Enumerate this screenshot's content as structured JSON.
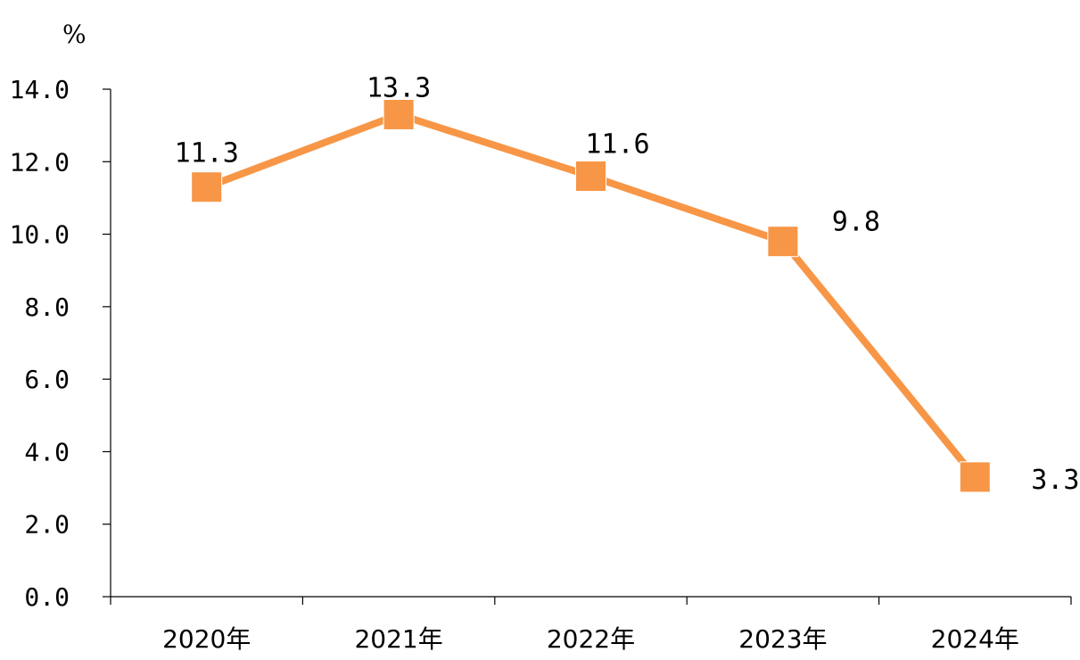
{
  "chart_data": {
    "type": "line",
    "title": "",
    "xlabel": "",
    "ylabel": "%",
    "categories": [
      "2020年",
      "2021年",
      "2022年",
      "2023年",
      "2024年"
    ],
    "series": [
      {
        "values": [
          11.3,
          13.3,
          11.6,
          9.8,
          3.3
        ],
        "color": "#F79646"
      }
    ],
    "data_labels": [
      "11.3",
      "13.3",
      "11.6",
      "9.8",
      "3.3"
    ],
    "y_ticks": [
      "0.0",
      "2.0",
      "4.0",
      "6.0",
      "8.0",
      "10.0",
      "12.0",
      "14.0"
    ],
    "ylim": [
      0,
      14
    ],
    "grid": false,
    "legend": "none",
    "marker": "square"
  }
}
